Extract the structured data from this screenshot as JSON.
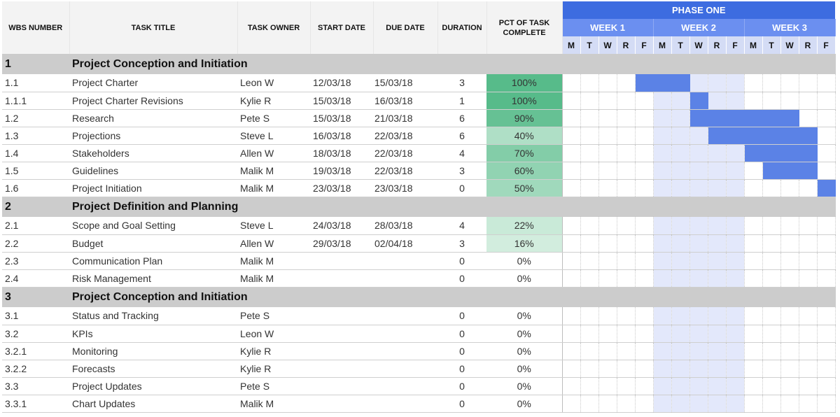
{
  "header": {
    "wbs": "WBS NUMBER",
    "title": "TASK TITLE",
    "owner": "TASK OWNER",
    "start": "START DATE",
    "due": "DUE DATE",
    "duration": "DURATION",
    "pct": "PCT OF TASK COMPLETE",
    "phase": "PHASE ONE",
    "weeks": [
      "WEEK 1",
      "WEEK 2",
      "WEEK 3"
    ],
    "days": [
      "M",
      "T",
      "W",
      "R",
      "F",
      "M",
      "T",
      "W",
      "R",
      "F",
      "M",
      "T",
      "W",
      "R",
      "F"
    ]
  },
  "colors": {
    "phase": "#3d6ce0",
    "week": "#6b8ff0",
    "bar": "#5b82e6",
    "week2_shade": "#e3e8fb",
    "section": "#cccccc"
  },
  "rows": [
    {
      "type": "section",
      "id": "1",
      "title": "Project Conception and Initiation"
    },
    {
      "type": "task",
      "id": "1.1",
      "title": "Project Charter",
      "owner": "Leon W",
      "start": "12/03/18",
      "due": "15/03/18",
      "duration": "3",
      "pct": "100%",
      "pct_value": 100,
      "bar": [
        4,
        6
      ]
    },
    {
      "type": "task",
      "id": "1.1.1",
      "title": "Project Charter Revisions",
      "owner": "Kylie R",
      "start": "15/03/18",
      "due": "16/03/18",
      "duration": "1",
      "pct": "100%",
      "pct_value": 100,
      "bar": [
        7,
        7
      ]
    },
    {
      "type": "task",
      "id": "1.2",
      "title": "Research",
      "owner": "Pete S",
      "start": "15/03/18",
      "due": "21/03/18",
      "duration": "6",
      "pct": "90%",
      "pct_value": 90,
      "bar": [
        7,
        12
      ]
    },
    {
      "type": "task",
      "id": "1.3",
      "title": "Projections",
      "owner": "Steve L",
      "start": "16/03/18",
      "due": "22/03/18",
      "duration": "6",
      "pct": "40%",
      "pct_value": 40,
      "bar": [
        8,
        13
      ]
    },
    {
      "type": "task",
      "id": "1.4",
      "title": "Stakeholders",
      "owner": "Allen W",
      "start": "18/03/18",
      "due": "22/03/18",
      "duration": "4",
      "pct": "70%",
      "pct_value": 70,
      "bar": [
        10,
        13
      ]
    },
    {
      "type": "task",
      "id": "1.5",
      "title": "Guidelines",
      "owner": "Malik M",
      "start": "19/03/18",
      "due": "22/03/18",
      "duration": "3",
      "pct": "60%",
      "pct_value": 60,
      "bar": [
        11,
        13
      ]
    },
    {
      "type": "task",
      "id": "1.6",
      "title": "Project Initiation",
      "owner": "Malik M",
      "start": "23/03/18",
      "due": "23/03/18",
      "duration": "0",
      "pct": "50%",
      "pct_value": 50,
      "bar": [
        14,
        14
      ]
    },
    {
      "type": "section",
      "id": "2",
      "title": "Project Definition and Planning"
    },
    {
      "type": "task",
      "id": "2.1",
      "title": "Scope and Goal Setting",
      "owner": "Steve L",
      "start": "24/03/18",
      "due": "28/03/18",
      "duration": "4",
      "pct": "22%",
      "pct_value": 22,
      "bar": null
    },
    {
      "type": "task",
      "id": "2.2",
      "title": "Budget",
      "owner": "Allen W",
      "start": "29/03/18",
      "due": "02/04/18",
      "duration": "3",
      "pct": "16%",
      "pct_value": 16,
      "bar": null
    },
    {
      "type": "task",
      "id": "2.3",
      "title": "Communication Plan",
      "owner": "Malik M",
      "start": "",
      "due": "",
      "duration": "0",
      "pct": "0%",
      "pct_value": 0,
      "bar": null
    },
    {
      "type": "task",
      "id": "2.4",
      "title": "Risk Management",
      "owner": "Malik M",
      "start": "",
      "due": "",
      "duration": "0",
      "pct": "0%",
      "pct_value": 0,
      "bar": null
    },
    {
      "type": "section",
      "id": "3",
      "title": "Project Conception and Initiation"
    },
    {
      "type": "task",
      "id": "3.1",
      "title": "Status and Tracking",
      "owner": "Pete S",
      "start": "",
      "due": "",
      "duration": "0",
      "pct": "0%",
      "pct_value": 0,
      "bar": null
    },
    {
      "type": "task",
      "id": "3.2",
      "title": "KPIs",
      "owner": "Leon W",
      "start": "",
      "due": "",
      "duration": "0",
      "pct": "0%",
      "pct_value": 0,
      "bar": null
    },
    {
      "type": "task",
      "id": "3.2.1",
      "title": "Monitoring",
      "owner": "Kylie R",
      "start": "",
      "due": "",
      "duration": "0",
      "pct": "0%",
      "pct_value": 0,
      "bar": null
    },
    {
      "type": "task",
      "id": "3.2.2",
      "title": "Forecasts",
      "owner": "Kylie R",
      "start": "",
      "due": "",
      "duration": "0",
      "pct": "0%",
      "pct_value": 0,
      "bar": null
    },
    {
      "type": "task",
      "id": "3.3",
      "title": "Project Updates",
      "owner": "Pete S",
      "start": "",
      "due": "",
      "duration": "0",
      "pct": "0%",
      "pct_value": 0,
      "bar": null
    },
    {
      "type": "task",
      "id": "3.3.1",
      "title": "Chart Updates",
      "owner": "Malik M",
      "start": "",
      "due": "",
      "duration": "0",
      "pct": "0%",
      "pct_value": 0,
      "bar": null
    }
  ]
}
